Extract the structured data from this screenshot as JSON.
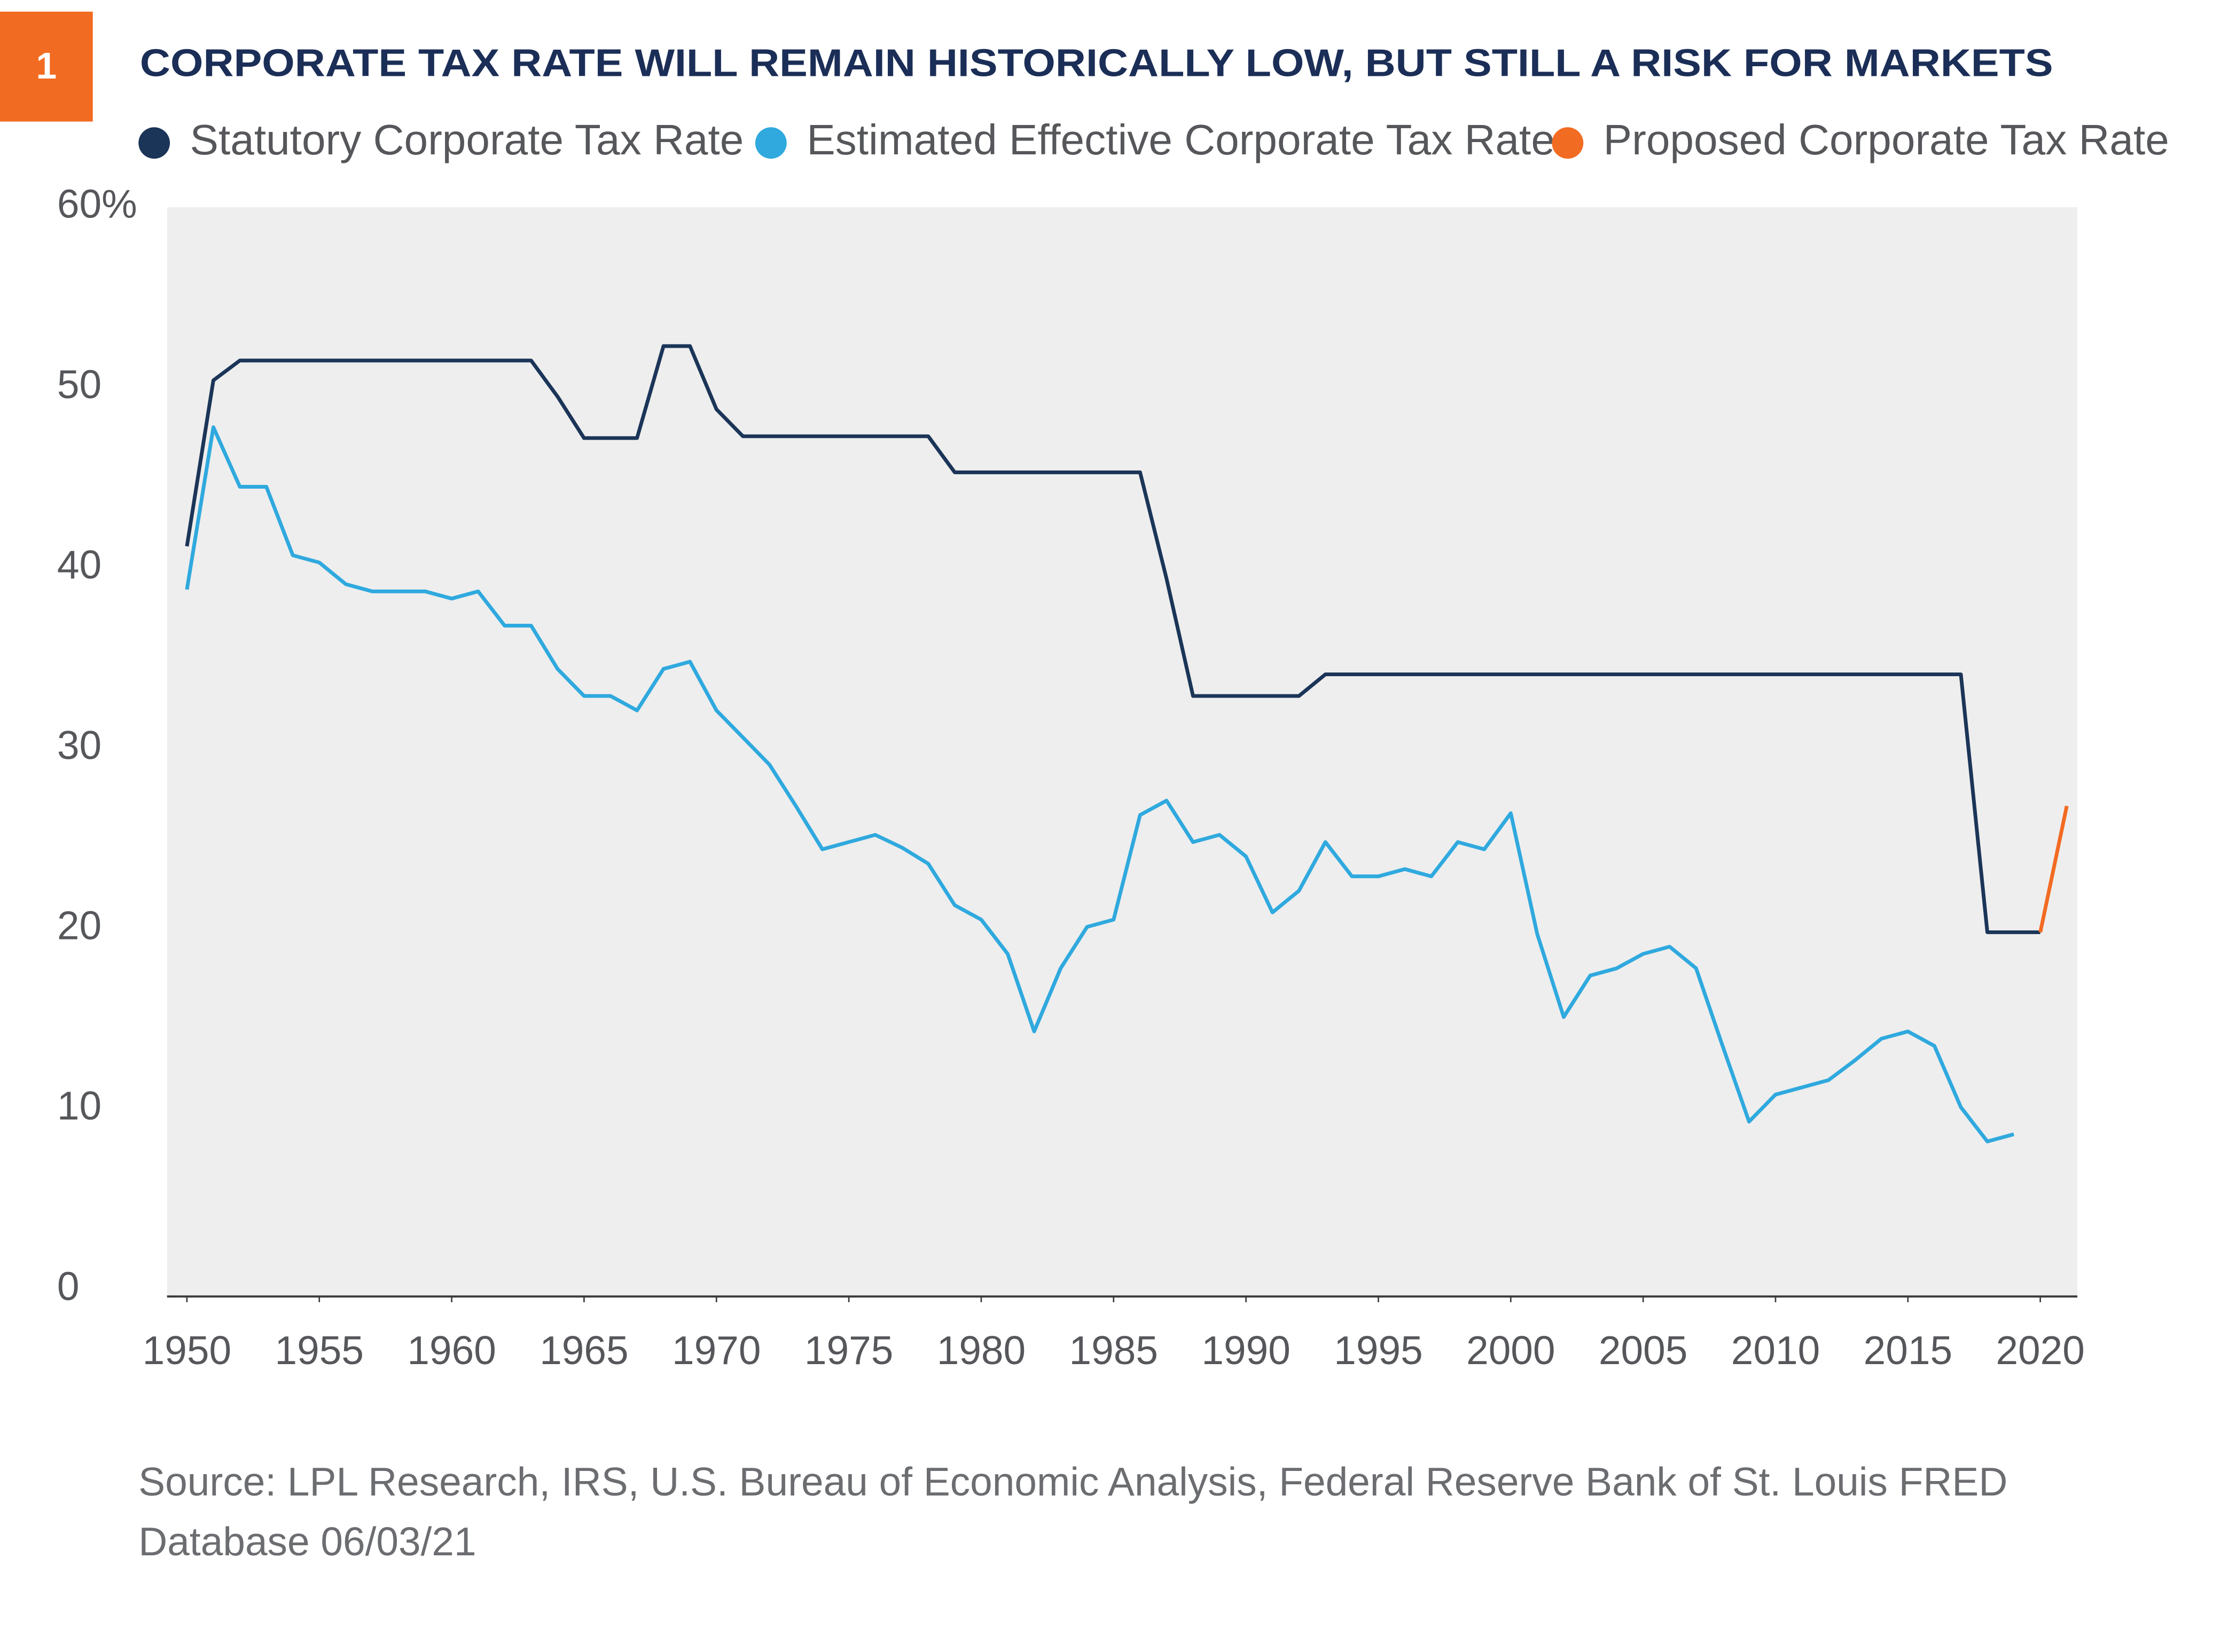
{
  "badge": "1",
  "chart_data": {
    "type": "line",
    "title": "CORPORATE TAX RATE WILL REMAIN HISTORICALLY LOW, BUT STILL A RISK FOR MARKETS",
    "source": [
      "Source: LPL Research, IRS, U.S. Bureau of Economic Analysis, Federal Reserve Bank of St. Louis FRED",
      "Database 06/03/21"
    ],
    "x": [
      1950,
      1951,
      1952,
      1953,
      1954,
      1955,
      1956,
      1957,
      1958,
      1959,
      1960,
      1961,
      1962,
      1963,
      1964,
      1965,
      1966,
      1967,
      1968,
      1969,
      1970,
      1971,
      1972,
      1973,
      1974,
      1975,
      1976,
      1977,
      1978,
      1979,
      1980,
      1981,
      1982,
      1983,
      1984,
      1985,
      1986,
      1987,
      1988,
      1989,
      1990,
      1991,
      1992,
      1993,
      1994,
      1995,
      1996,
      1997,
      1998,
      1999,
      2000,
      2001,
      2002,
      2003,
      2004,
      2005,
      2006,
      2007,
      2008,
      2009,
      2010,
      2011,
      2012,
      2013,
      2014,
      2015,
      2016,
      2017,
      2018,
      2019,
      2020,
      2021
    ],
    "series": [
      {
        "name": "Statutory Corporate Tax Rate",
        "color": "#1b3558",
        "values": [
          41.2,
          50.4,
          51.5,
          51.5,
          51.5,
          51.5,
          51.5,
          51.5,
          51.5,
          51.5,
          51.5,
          51.5,
          51.5,
          51.5,
          49.5,
          47.2,
          47.2,
          47.2,
          52.3,
          52.3,
          48.8,
          47.3,
          47.3,
          47.3,
          47.3,
          47.3,
          47.3,
          47.3,
          47.3,
          45.3,
          45.3,
          45.3,
          45.3,
          45.3,
          45.3,
          45.3,
          45.3,
          39.4,
          32.9,
          32.9,
          32.9,
          32.9,
          32.9,
          34.1,
          34.1,
          34.1,
          34.1,
          34.1,
          34.1,
          34.1,
          34.1,
          34.1,
          34.1,
          34.1,
          34.1,
          34.1,
          34.1,
          34.1,
          34.1,
          34.1,
          34.1,
          34.1,
          34.1,
          34.1,
          34.1,
          34.1,
          34.1,
          34.1,
          19.8,
          19.8,
          19.8,
          null
        ]
      },
      {
        "name": "Estimated Effective Corporate Tax Rate",
        "color": "#2fa9de",
        "values": [
          38.8,
          47.8,
          44.5,
          44.5,
          40.7,
          40.3,
          39.1,
          38.7,
          38.7,
          38.7,
          38.3,
          38.7,
          36.8,
          36.8,
          34.4,
          32.9,
          32.9,
          32.1,
          34.4,
          34.8,
          32.1,
          30.6,
          29.1,
          26.8,
          24.4,
          24.8,
          25.2,
          24.5,
          23.6,
          21.3,
          20.5,
          18.6,
          14.3,
          17.8,
          20.1,
          20.5,
          26.3,
          27.1,
          24.8,
          25.2,
          24.0,
          20.9,
          22.1,
          24.8,
          22.9,
          22.9,
          23.3,
          22.9,
          24.8,
          24.4,
          26.4,
          19.7,
          15.1,
          17.4,
          17.8,
          18.6,
          19.0,
          17.8,
          13.5,
          9.3,
          10.8,
          11.2,
          11.6,
          12.7,
          13.9,
          14.3,
          13.5,
          10.1,
          8.2,
          8.6,
          null,
          null
        ]
      },
      {
        "name": "Proposed Corporate Tax Rate",
        "color": "#f26b22",
        "values": [
          null,
          null,
          null,
          null,
          null,
          null,
          null,
          null,
          null,
          null,
          null,
          null,
          null,
          null,
          null,
          null,
          null,
          null,
          null,
          null,
          null,
          null,
          null,
          null,
          null,
          null,
          null,
          null,
          null,
          null,
          null,
          null,
          null,
          null,
          null,
          null,
          null,
          null,
          null,
          null,
          null,
          null,
          null,
          null,
          null,
          null,
          null,
          null,
          null,
          null,
          null,
          null,
          null,
          null,
          null,
          null,
          null,
          null,
          null,
          null,
          null,
          null,
          null,
          null,
          null,
          null,
          null,
          null,
          null,
          null,
          19.8,
          26.8
        ]
      }
    ],
    "xlim": [
      1949.25,
      2021.4
    ],
    "xticks": [
      1950,
      1955,
      1960,
      1965,
      1970,
      1975,
      1980,
      1985,
      1990,
      1995,
      2000,
      2005,
      2010,
      2015,
      2020
    ],
    "ylim": [
      0,
      60
    ],
    "yticks": [
      0,
      10,
      20,
      30,
      40,
      {
        "value": 60,
        "label": "60%"
      },
      50
    ],
    "grid": false,
    "background": "#eeeeee"
  }
}
